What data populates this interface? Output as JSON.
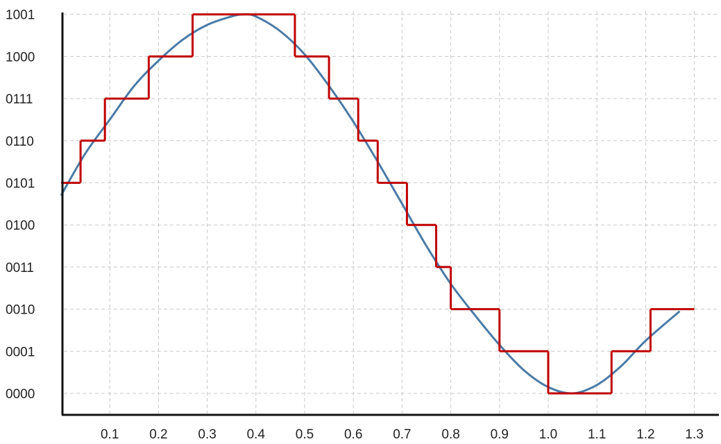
{
  "chart_data": {
    "type": "line",
    "title": "",
    "xlabel": "",
    "ylabel": "",
    "grid": true,
    "legend": "none",
    "xlim": [
      0,
      1.3
    ],
    "ylim": [
      0,
      9
    ],
    "x_ticks": [
      {
        "value": 0.1,
        "label": "0.1"
      },
      {
        "value": 0.2,
        "label": "0.2"
      },
      {
        "value": 0.3,
        "label": "0.3"
      },
      {
        "value": 0.4,
        "label": "0.4"
      },
      {
        "value": 0.5,
        "label": "0.5"
      },
      {
        "value": 0.6,
        "label": "0.6"
      },
      {
        "value": 0.7,
        "label": "0.7"
      },
      {
        "value": 0.8,
        "label": "0.8"
      },
      {
        "value": 0.9,
        "label": "0.9"
      },
      {
        "value": 1.0,
        "label": "1.0"
      },
      {
        "value": 1.1,
        "label": "1.1"
      },
      {
        "value": 1.2,
        "label": "1.2"
      },
      {
        "value": 1.3,
        "label": "1.3"
      }
    ],
    "y_ticks": [
      {
        "value": 0,
        "label": "0000"
      },
      {
        "value": 1,
        "label": "0001"
      },
      {
        "value": 2,
        "label": "0010"
      },
      {
        "value": 3,
        "label": "0011"
      },
      {
        "value": 4,
        "label": "0100"
      },
      {
        "value": 5,
        "label": "0101"
      },
      {
        "value": 6,
        "label": "0110"
      },
      {
        "value": 7,
        "label": "0111"
      },
      {
        "value": 8,
        "label": "1000"
      },
      {
        "value": 9,
        "label": "1001"
      }
    ],
    "series": [
      {
        "style": "smooth",
        "color": "#4a7aa6",
        "points": [
          [
            0.0,
            4.7
          ],
          [
            0.05,
            5.7
          ],
          [
            0.1,
            6.5
          ],
          [
            0.15,
            7.3
          ],
          [
            0.2,
            7.9
          ],
          [
            0.25,
            8.4
          ],
          [
            0.3,
            8.75
          ],
          [
            0.35,
            8.95
          ],
          [
            0.375,
            9.0
          ],
          [
            0.4,
            8.95
          ],
          [
            0.45,
            8.6
          ],
          [
            0.5,
            8.05
          ],
          [
            0.55,
            7.3
          ],
          [
            0.6,
            6.45
          ],
          [
            0.65,
            5.5
          ],
          [
            0.7,
            4.5
          ],
          [
            0.75,
            3.5
          ],
          [
            0.8,
            2.6
          ],
          [
            0.85,
            1.85
          ],
          [
            0.9,
            1.15
          ],
          [
            0.95,
            0.55
          ],
          [
            1.0,
            0.15
          ],
          [
            1.05,
            0.0
          ],
          [
            1.1,
            0.2
          ],
          [
            1.15,
            0.65
          ],
          [
            1.2,
            1.25
          ],
          [
            1.27,
            1.95
          ]
        ]
      },
      {
        "style": "step",
        "color": "#c00000",
        "steps": [
          [
            0.0,
            0.04,
            5
          ],
          [
            0.04,
            0.09,
            6
          ],
          [
            0.09,
            0.18,
            7
          ],
          [
            0.18,
            0.27,
            8
          ],
          [
            0.27,
            0.48,
            9
          ],
          [
            0.48,
            0.55,
            8
          ],
          [
            0.55,
            0.61,
            7
          ],
          [
            0.61,
            0.65,
            6
          ],
          [
            0.65,
            0.71,
            5
          ],
          [
            0.71,
            0.77,
            4
          ],
          [
            0.77,
            0.8,
            3
          ],
          [
            0.8,
            0.9,
            2
          ],
          [
            0.9,
            1.0,
            1
          ],
          [
            1.0,
            1.13,
            0
          ],
          [
            1.13,
            1.21,
            1
          ],
          [
            1.21,
            1.3,
            2
          ]
        ]
      }
    ]
  }
}
